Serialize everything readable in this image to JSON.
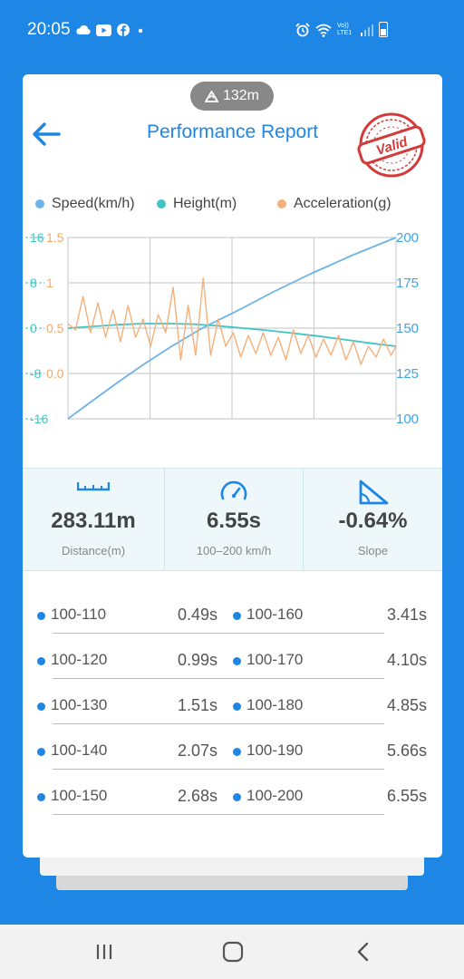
{
  "status_bar": {
    "time": "20:05",
    "network_label": "Vo)) LTE1"
  },
  "header": {
    "distance_badge": "132m",
    "title": "Performance Report",
    "stamp_text": "Valid"
  },
  "chart_data": {
    "type": "line",
    "legend": [
      "Speed(km/h)",
      "Height(m)",
      "Acceleration(g)"
    ],
    "colors": {
      "speed": "#6cb3ea",
      "height": "#3fc4c4",
      "accel": "#f5b07a"
    },
    "axes": {
      "height_ticks": [
        "16",
        "8",
        "0",
        "-8",
        "-16"
      ],
      "accel_ticks": [
        "1.5",
        "1",
        "0.5",
        "0.0"
      ],
      "speed_ticks": [
        "200",
        "175",
        "150",
        "125",
        "100"
      ],
      "height_range": [
        -16,
        16
      ],
      "accel_range": [
        -0.5,
        1.5
      ],
      "speed_range": [
        100,
        200
      ]
    },
    "grid": true,
    "x_range": [
      0,
      6.55
    ],
    "series": [
      {
        "name": "Speed(km/h)",
        "axis": "speed",
        "x": [
          0,
          0.49,
          0.99,
          1.51,
          2.07,
          2.68,
          3.41,
          4.1,
          4.85,
          5.66,
          6.55
        ],
        "y": [
          100,
          110,
          120,
          130,
          140,
          150,
          160,
          170,
          180,
          190,
          200
        ]
      },
      {
        "name": "Height(m)",
        "axis": "height",
        "x": [
          0,
          0.5,
          1.0,
          1.5,
          2.0,
          2.5,
          3.0,
          3.5,
          4.0,
          4.5,
          5.0,
          5.5,
          6.0,
          6.55
        ],
        "y": [
          0,
          0.3,
          0.6,
          0.8,
          0.8,
          0.7,
          0.4,
          0,
          -0.4,
          -0.9,
          -1.4,
          -2.0,
          -2.6,
          -3.2
        ]
      },
      {
        "name": "Acceleration(g)",
        "axis": "accel",
        "x": [
          0,
          0.15,
          0.3,
          0.45,
          0.6,
          0.75,
          0.9,
          1.05,
          1.2,
          1.35,
          1.5,
          1.65,
          1.8,
          1.95,
          2.1,
          2.25,
          2.4,
          2.55,
          2.7,
          2.85,
          3.0,
          3.15,
          3.3,
          3.45,
          3.6,
          3.75,
          3.9,
          4.05,
          4.2,
          4.35,
          4.5,
          4.65,
          4.8,
          4.95,
          5.1,
          5.25,
          5.4,
          5.55,
          5.7,
          5.85,
          6.0,
          6.15,
          6.3,
          6.45,
          6.55
        ],
        "y": [
          0.55,
          0.48,
          0.85,
          0.45,
          0.78,
          0.4,
          0.7,
          0.35,
          0.75,
          0.4,
          0.6,
          0.3,
          0.65,
          0.45,
          0.95,
          0.15,
          0.75,
          0.2,
          1.05,
          0.2,
          0.6,
          0.3,
          0.45,
          0.18,
          0.42,
          0.22,
          0.45,
          0.2,
          0.4,
          0.15,
          0.48,
          0.22,
          0.42,
          0.18,
          0.38,
          0.2,
          0.42,
          0.15,
          0.35,
          0.1,
          0.3,
          0.18,
          0.38,
          0.2,
          0.3
        ]
      }
    ]
  },
  "stats": [
    {
      "value": "283.11m",
      "label": "Distance(m)"
    },
    {
      "value": "6.55s",
      "label": "100–200 km/h"
    },
    {
      "value": "-0.64%",
      "label": "Slope"
    }
  ],
  "splits": [
    {
      "range": "100-110",
      "time": "0.49s"
    },
    {
      "range": "100-160",
      "time": "3.41s"
    },
    {
      "range": "100-120",
      "time": "0.99s"
    },
    {
      "range": "100-170",
      "time": "4.10s"
    },
    {
      "range": "100-130",
      "time": "1.51s"
    },
    {
      "range": "100-180",
      "time": "4.85s"
    },
    {
      "range": "100-140",
      "time": "2.07s"
    },
    {
      "range": "100-190",
      "time": "5.66s"
    },
    {
      "range": "100-150",
      "time": "2.68s"
    },
    {
      "range": "100-200",
      "time": "6.55s"
    }
  ]
}
